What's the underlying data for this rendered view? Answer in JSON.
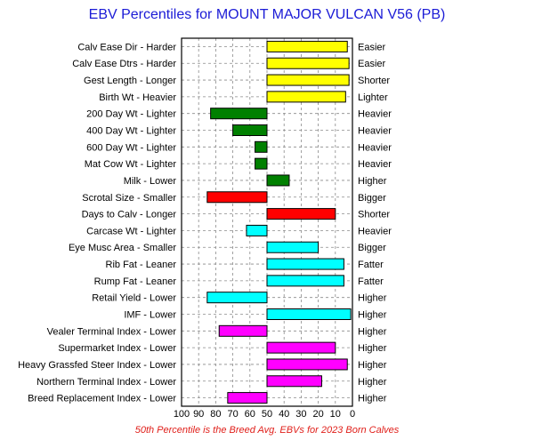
{
  "chart_data": {
    "type": "bar",
    "orientation": "horizontal-diverging",
    "title": "EBV Percentiles for MOUNT MAJOR VULCAN V56 (PB)",
    "footnote": "50th Percentile is the Breed Avg. EBVs for 2023 Born Calves",
    "baseline": 50,
    "xlim": [
      100,
      0
    ],
    "x_reversed": true,
    "x_ticks": [
      "100",
      "90",
      "80",
      "70",
      "60",
      "50",
      "40",
      "30",
      "20",
      "10",
      "0"
    ],
    "grid": true,
    "rows": [
      {
        "left_label": "Calv Ease Dir - Harder",
        "right_label": "Easier",
        "value": 3,
        "color": "#ffff00"
      },
      {
        "left_label": "Calv Ease Dtrs - Harder",
        "right_label": "Easier",
        "value": 2,
        "color": "#ffff00"
      },
      {
        "left_label": "Gest Length - Longer",
        "right_label": "Shorter",
        "value": 2,
        "color": "#ffff00"
      },
      {
        "left_label": "Birth Wt - Heavier",
        "right_label": "Lighter",
        "value": 4,
        "color": "#ffff00"
      },
      {
        "left_label": "200 Day Wt - Lighter",
        "right_label": "Heavier",
        "value": 83,
        "color": "#008000"
      },
      {
        "left_label": "400 Day Wt - Lighter",
        "right_label": "Heavier",
        "value": 70,
        "color": "#008000"
      },
      {
        "left_label": "600 Day Wt - Lighter",
        "right_label": "Heavier",
        "value": 57,
        "color": "#008000"
      },
      {
        "left_label": "Mat Cow Wt - Lighter",
        "right_label": "Heavier",
        "value": 57,
        "color": "#008000"
      },
      {
        "left_label": "Milk - Lower",
        "right_label": "Higher",
        "value": 37,
        "color": "#008000"
      },
      {
        "left_label": "Scrotal Size - Smaller",
        "right_label": "Bigger",
        "value": 85,
        "color": "#ff0000"
      },
      {
        "left_label": "Days to Calv - Longer",
        "right_label": "Shorter",
        "value": 10,
        "color": "#ff0000"
      },
      {
        "left_label": "Carcase Wt - Lighter",
        "right_label": "Heavier",
        "value": 62,
        "color": "#00ffff"
      },
      {
        "left_label": "Eye Musc Area - Smaller",
        "right_label": "Bigger",
        "value": 20,
        "color": "#00ffff"
      },
      {
        "left_label": "Rib Fat - Leaner",
        "right_label": "Fatter",
        "value": 5,
        "color": "#00ffff"
      },
      {
        "left_label": "Rump Fat - Leaner",
        "right_label": "Fatter",
        "value": 5,
        "color": "#00ffff"
      },
      {
        "left_label": "Retail Yield - Lower",
        "right_label": "Higher",
        "value": 85,
        "color": "#00ffff"
      },
      {
        "left_label": "IMF - Lower",
        "right_label": "Higher",
        "value": 1,
        "color": "#00ffff"
      },
      {
        "left_label": "Vealer Terminal Index - Lower",
        "right_label": "Higher",
        "value": 78,
        "color": "#ff00ff"
      },
      {
        "left_label": "Supermarket Index - Lower",
        "right_label": "Higher",
        "value": 10,
        "color": "#ff00ff"
      },
      {
        "left_label": "Heavy Grassfed Steer Index - Lower",
        "right_label": "Higher",
        "value": 3,
        "color": "#ff00ff"
      },
      {
        "left_label": "Northern Terminal Index - Lower",
        "right_label": "Higher",
        "value": 18,
        "color": "#ff00ff"
      },
      {
        "left_label": "Breed Replacement Index - Lower",
        "right_label": "Higher",
        "value": 73,
        "color": "#ff00ff"
      }
    ]
  }
}
